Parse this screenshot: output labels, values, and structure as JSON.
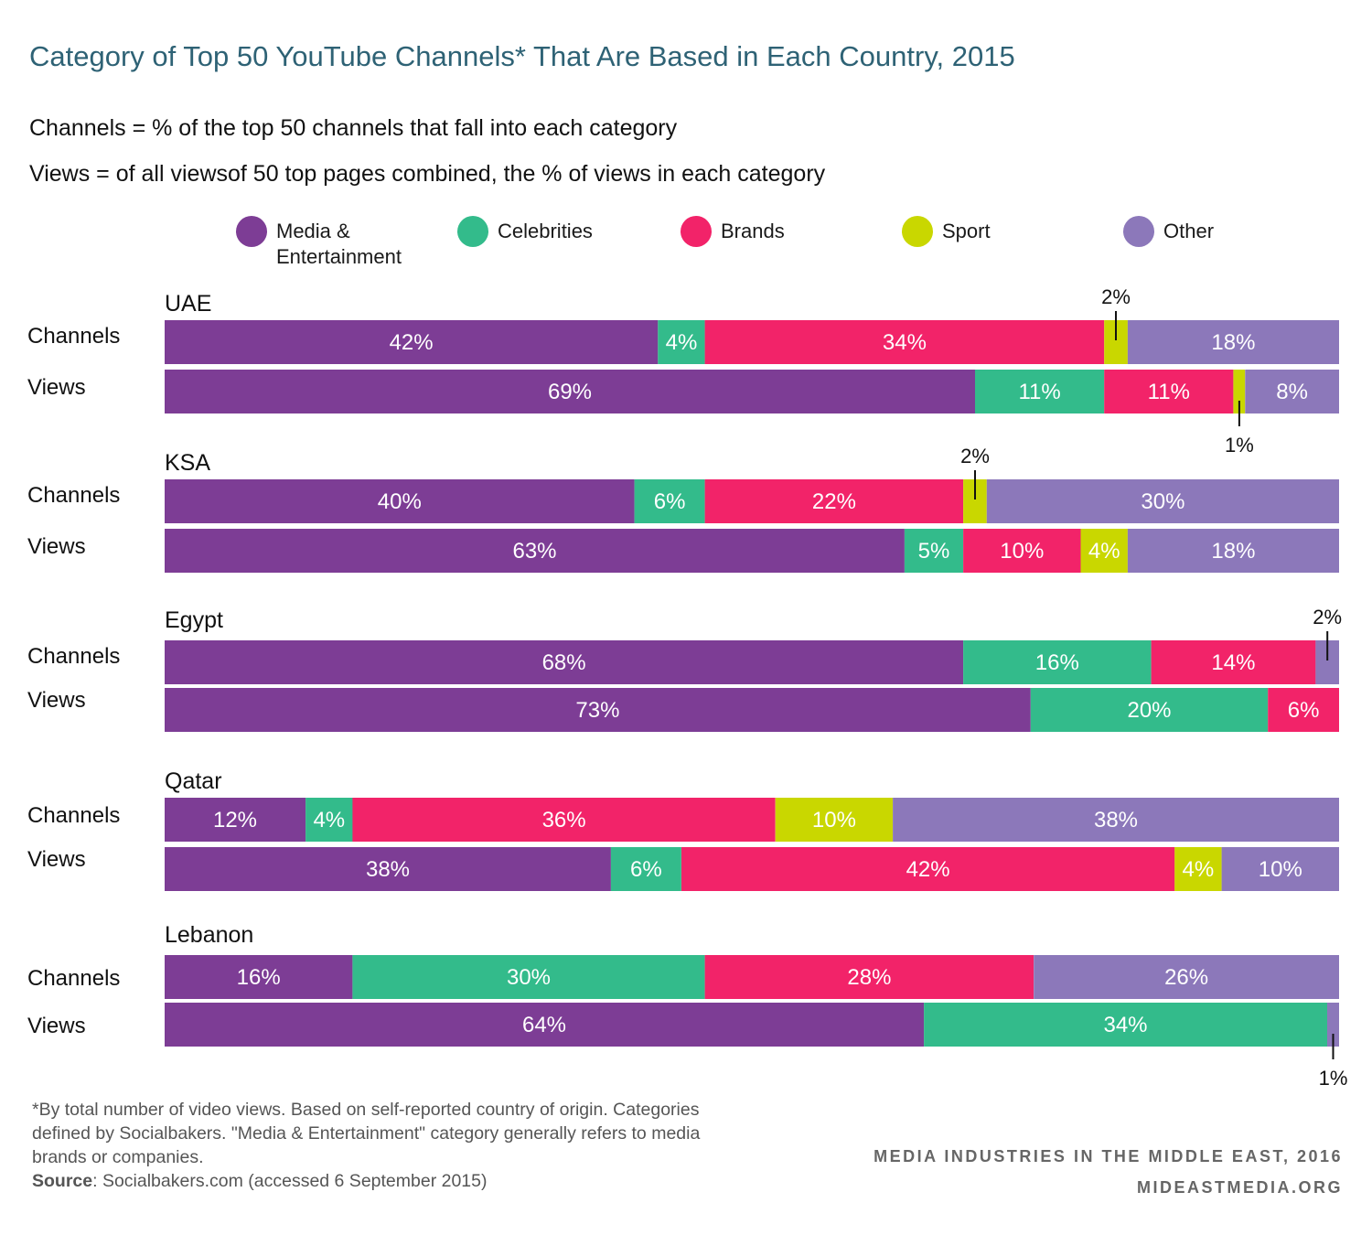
{
  "title": "Category of Top 50 YouTube Channels* That Are Based in Each Country, 2015",
  "definitions": {
    "channels": "Channels = % of the top 50 channels that fall into each category",
    "views": "Views = of all viewsof 50 top pages combined, the % of views in each category"
  },
  "footnote": {
    "text": "*By total number of video views. Based on self-reported country of origin. Categories defined by Socialbakers. \"Media & Entertainment\" category generally refers to media brands or companies.",
    "source_label": "Source",
    "source_text": ": Socialbakers.com (accessed 6 September 2015)"
  },
  "credit": {
    "line1": "MEDIA INDUSTRIES IN THE MIDDLE EAST, 2016",
    "line2": "MIDEASTMEDIA.ORG"
  },
  "chart_data": {
    "type": "bar",
    "orientation": "horizontal",
    "stacked": true,
    "unit": "%",
    "xlim": [
      0,
      100
    ],
    "legend_placement": "top",
    "categories": [
      "Media & Entertainment",
      "Celebrities",
      "Brands",
      "Sport",
      "Other"
    ],
    "colors": [
      "#7d3d95",
      "#33bb8b",
      "#f22369",
      "#c9d700",
      "#8c78ba"
    ],
    "groups": [
      {
        "country": "UAE",
        "rows": [
          {
            "label": "Channels",
            "values": [
              42,
              4,
              34,
              2,
              18
            ]
          },
          {
            "label": "Views",
            "values": [
              69,
              11,
              11,
              1,
              8
            ]
          }
        ]
      },
      {
        "country": "KSA",
        "rows": [
          {
            "label": "Channels",
            "values": [
              40,
              6,
              22,
              2,
              30
            ]
          },
          {
            "label": "Views",
            "values": [
              63,
              5,
              10,
              4,
              18
            ]
          }
        ]
      },
      {
        "country": "Egypt",
        "rows": [
          {
            "label": "Channels",
            "values": [
              68,
              16,
              14,
              0,
              2
            ]
          },
          {
            "label": "Views",
            "values": [
              73,
              20,
              6,
              0,
              0
            ]
          }
        ]
      },
      {
        "country": "Qatar",
        "rows": [
          {
            "label": "Channels",
            "values": [
              12,
              4,
              36,
              10,
              38
            ]
          },
          {
            "label": "Views",
            "values": [
              38,
              6,
              42,
              4,
              10
            ]
          }
        ]
      },
      {
        "country": "Lebanon",
        "rows": [
          {
            "label": "Channels",
            "values": [
              16,
              30,
              28,
              0,
              26
            ]
          },
          {
            "label": "Views",
            "values": [
              64,
              34,
              0,
              0,
              1
            ]
          }
        ]
      }
    ]
  }
}
